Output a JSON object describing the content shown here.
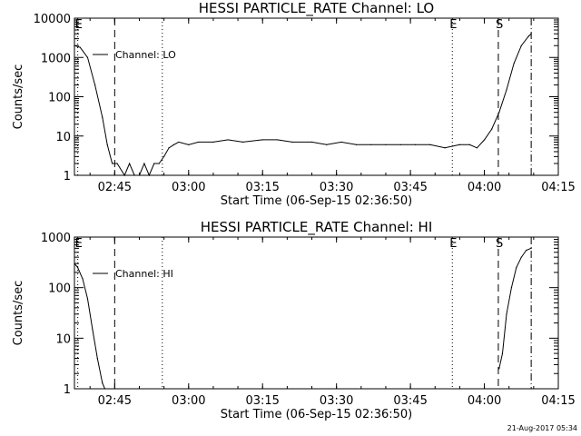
{
  "footer": {
    "timestamp": "21-Aug-2017 05:34"
  },
  "chart_data": [
    {
      "type": "line",
      "title": "HESSI PARTICLE_RATE Channel: LO",
      "xlabel": "Start Time (06-Sep-15 02:36:50)",
      "ylabel": "Counts/sec",
      "yscale": "log",
      "ylim": [
        1,
        10000
      ],
      "xlim": [
        "02:36:50",
        "04:15:00"
      ],
      "xticks": [
        "02:45",
        "03:00",
        "03:15",
        "03:30",
        "03:45",
        "04:00",
        "04:15"
      ],
      "yticks": [
        "1",
        "10",
        "100",
        "1000",
        "10000"
      ],
      "legend": {
        "position": "top-left",
        "label": "Channel: LO"
      },
      "markers": [
        {
          "label": "E",
          "time": "02:37:30",
          "style": "dotted"
        },
        {
          "label": "",
          "time": "02:45:00",
          "style": "dashed"
        },
        {
          "label": "",
          "time": "02:54:40",
          "style": "dotted"
        },
        {
          "label": "E",
          "time": "03:53:30",
          "style": "dotted"
        },
        {
          "label": "S",
          "time": "04:02:50",
          "style": "dashed"
        },
        {
          "label": "",
          "time": "04:09:30",
          "style": "dashdot"
        }
      ],
      "series": [
        {
          "name": "Channel: LO",
          "x": [
            "02:36:50",
            "02:38:00",
            "02:39:30",
            "02:41:00",
            "02:42:30",
            "02:43:30",
            "02:44:30",
            "02:45:30",
            "02:47:00",
            "02:48:00",
            "02:49:00",
            "02:50:00",
            "02:51:00",
            "02:52:00",
            "02:53:00",
            "02:54:00",
            "02:55:00",
            "02:56:00",
            "02:57:00",
            "02:58:00",
            "03:00:00",
            "03:02:00",
            "03:05:00",
            "03:08:00",
            "03:11:00",
            "03:15:00",
            "03:18:00",
            "03:21:00",
            "03:25:00",
            "03:28:00",
            "03:31:00",
            "03:34:00",
            "03:37:00",
            "03:40:00",
            "03:43:00",
            "03:46:00",
            "03:49:00",
            "03:52:00",
            "03:55:00",
            "03:57:00",
            "03:58:30",
            "04:00:00",
            "04:01:30",
            "04:03:00",
            "04:04:30",
            "04:06:00",
            "04:07:30",
            "04:09:00",
            "04:09:30"
          ],
          "y": [
            2000,
            1800,
            1000,
            200,
            30,
            6,
            2,
            2,
            1,
            2,
            1,
            1,
            2,
            1,
            2,
            2,
            3,
            5,
            6,
            7,
            6,
            7,
            7,
            8,
            7,
            8,
            8,
            7,
            7,
            6,
            7,
            6,
            6,
            6,
            6,
            6,
            6,
            5,
            6,
            6,
            5,
            8,
            15,
            40,
            150,
            700,
            2000,
            3500,
            4000
          ]
        }
      ]
    },
    {
      "type": "line",
      "title": "HESSI PARTICLE_RATE Channel: HI",
      "xlabel": "Start Time (06-Sep-15 02:36:50)",
      "ylabel": "Counts/sec",
      "yscale": "log",
      "ylim": [
        1,
        1000
      ],
      "xlim": [
        "02:36:50",
        "04:15:00"
      ],
      "xticks": [
        "02:45",
        "03:00",
        "03:15",
        "03:30",
        "03:45",
        "04:00",
        "04:15"
      ],
      "yticks": [
        "1",
        "10",
        "100",
        "1000"
      ],
      "legend": {
        "position": "top-left",
        "label": "Channel: HI"
      },
      "markers": [
        {
          "label": "E",
          "time": "02:37:30",
          "style": "dotted"
        },
        {
          "label": "",
          "time": "02:45:00",
          "style": "dashed"
        },
        {
          "label": "",
          "time": "02:54:40",
          "style": "dotted"
        },
        {
          "label": "E",
          "time": "03:53:30",
          "style": "dotted"
        },
        {
          "label": "S",
          "time": "04:02:50",
          "style": "dashed"
        },
        {
          "label": "",
          "time": "04:09:30",
          "style": "dashdot"
        }
      ],
      "series": [
        {
          "name": "Channel: HI",
          "x": [
            "02:36:50",
            "02:37:30",
            "02:38:30",
            "02:39:30",
            "02:40:30",
            "02:41:30",
            "02:42:30",
            "02:43:00",
            "04:03:00",
            "04:03:40",
            "04:04:30",
            "04:05:30",
            "04:06:30",
            "04:07:30",
            "04:08:30",
            "04:09:30"
          ],
          "y": [
            300,
            250,
            150,
            60,
            15,
            4,
            1.3,
            1,
            2.5,
            5,
            30,
            100,
            250,
            400,
            550,
            600
          ]
        }
      ]
    }
  ]
}
